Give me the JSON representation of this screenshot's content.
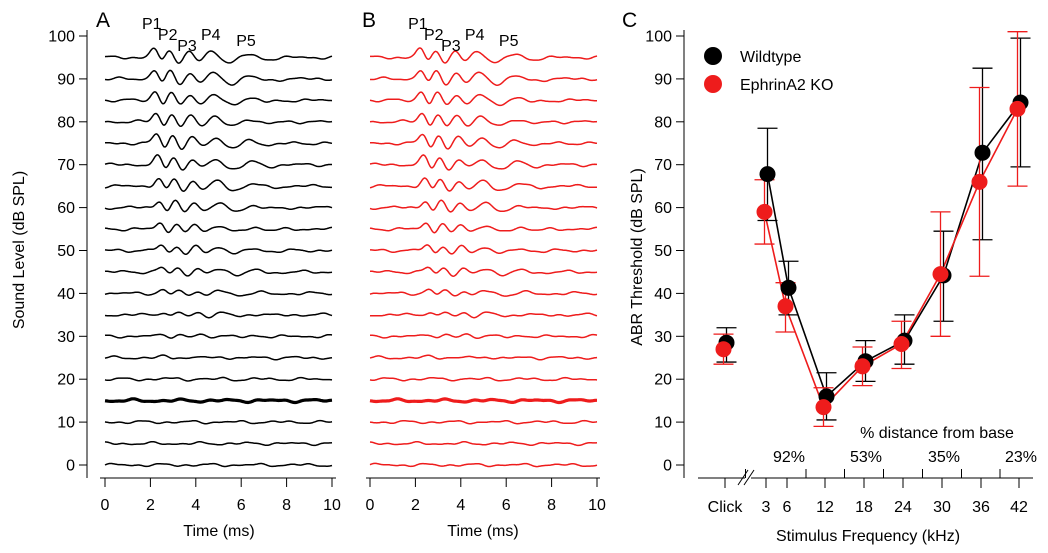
{
  "chart_data": [
    {
      "panel": "A",
      "type": "line",
      "color": "#000000",
      "ylabel": "Sound Level (dB SPL)",
      "xlabel": "Time (ms)",
      "xlim": [
        0,
        10
      ],
      "ylim": [
        0,
        100
      ],
      "x_ticks": [
        0,
        2,
        4,
        6,
        8,
        10
      ],
      "y_ticks": [
        0,
        10,
        20,
        30,
        40,
        50,
        60,
        70,
        80,
        90,
        100
      ],
      "levels": [
        0,
        5,
        10,
        15,
        20,
        25,
        30,
        35,
        40,
        45,
        50,
        55,
        60,
        65,
        70,
        75,
        80,
        85,
        90,
        95
      ],
      "threshold_level": 15,
      "peak_labels": [
        "P1",
        "P2",
        "P3",
        "P4",
        "P5"
      ],
      "peak_times": [
        2.15,
        2.85,
        3.7,
        4.75,
        6.3
      ]
    },
    {
      "panel": "B",
      "type": "line",
      "color": "#ee1c1c",
      "xlabel": "Time (ms)",
      "xlim": [
        0,
        10
      ],
      "ylim": [
        0,
        100
      ],
      "x_ticks": [
        0,
        2,
        4,
        6,
        8,
        10
      ],
      "levels": [
        0,
        5,
        10,
        15,
        20,
        25,
        30,
        35,
        40,
        45,
        50,
        55,
        60,
        65,
        70,
        75,
        80,
        85,
        90,
        95
      ],
      "threshold_level": 15,
      "peak_labels": [
        "P1",
        "P2",
        "P3",
        "P4",
        "P5"
      ],
      "peak_times": [
        2.2,
        2.9,
        3.65,
        4.7,
        6.2
      ]
    },
    {
      "panel": "C",
      "type": "scatter",
      "ylabel": "ABR Threshold (dB SPL)",
      "xlabel": "Stimulus Frequency (kHz)",
      "ylim": [
        0,
        100
      ],
      "y_ticks": [
        0,
        10,
        20,
        30,
        40,
        50,
        60,
        70,
        80,
        90,
        100
      ],
      "categories": [
        "Click",
        "3",
        "6",
        "12",
        "18",
        "24",
        "30",
        "36",
        "42"
      ],
      "legend_position": "top-left",
      "annotation": "% distance from base",
      "distance_labels": [
        {
          "category": "6",
          "label": "92%"
        },
        {
          "category": "18",
          "label": "53%"
        },
        {
          "category": "30",
          "label": "35%"
        },
        {
          "category": "42",
          "label": "23%"
        }
      ],
      "series": [
        {
          "name": "Wildtype",
          "color": "#000000",
          "values": [
            28.5,
            67.8,
            41.3,
            16.0,
            24.2,
            29.0,
            44.2,
            72.8,
            84.5
          ],
          "err_low": [
            24,
            57,
            35,
            10.5,
            19.5,
            23.5,
            33.5,
            52.5,
            69.5
          ],
          "err_high": [
            32,
            78.5,
            47.5,
            21.5,
            29,
            35,
            54.5,
            92.5,
            99.5
          ]
        },
        {
          "name": "EphrinA2 KO",
          "color": "#ee1c1c",
          "values": [
            27.0,
            59.0,
            37.0,
            13.5,
            23.0,
            28.2,
            44.5,
            66.0,
            83.0
          ],
          "err_low": [
            23.5,
            51.5,
            31,
            9,
            18.5,
            22.5,
            30,
            44,
            65
          ],
          "err_high": [
            30.5,
            66.5,
            42.5,
            18,
            27.5,
            33.5,
            59,
            88,
            101
          ]
        }
      ]
    }
  ]
}
